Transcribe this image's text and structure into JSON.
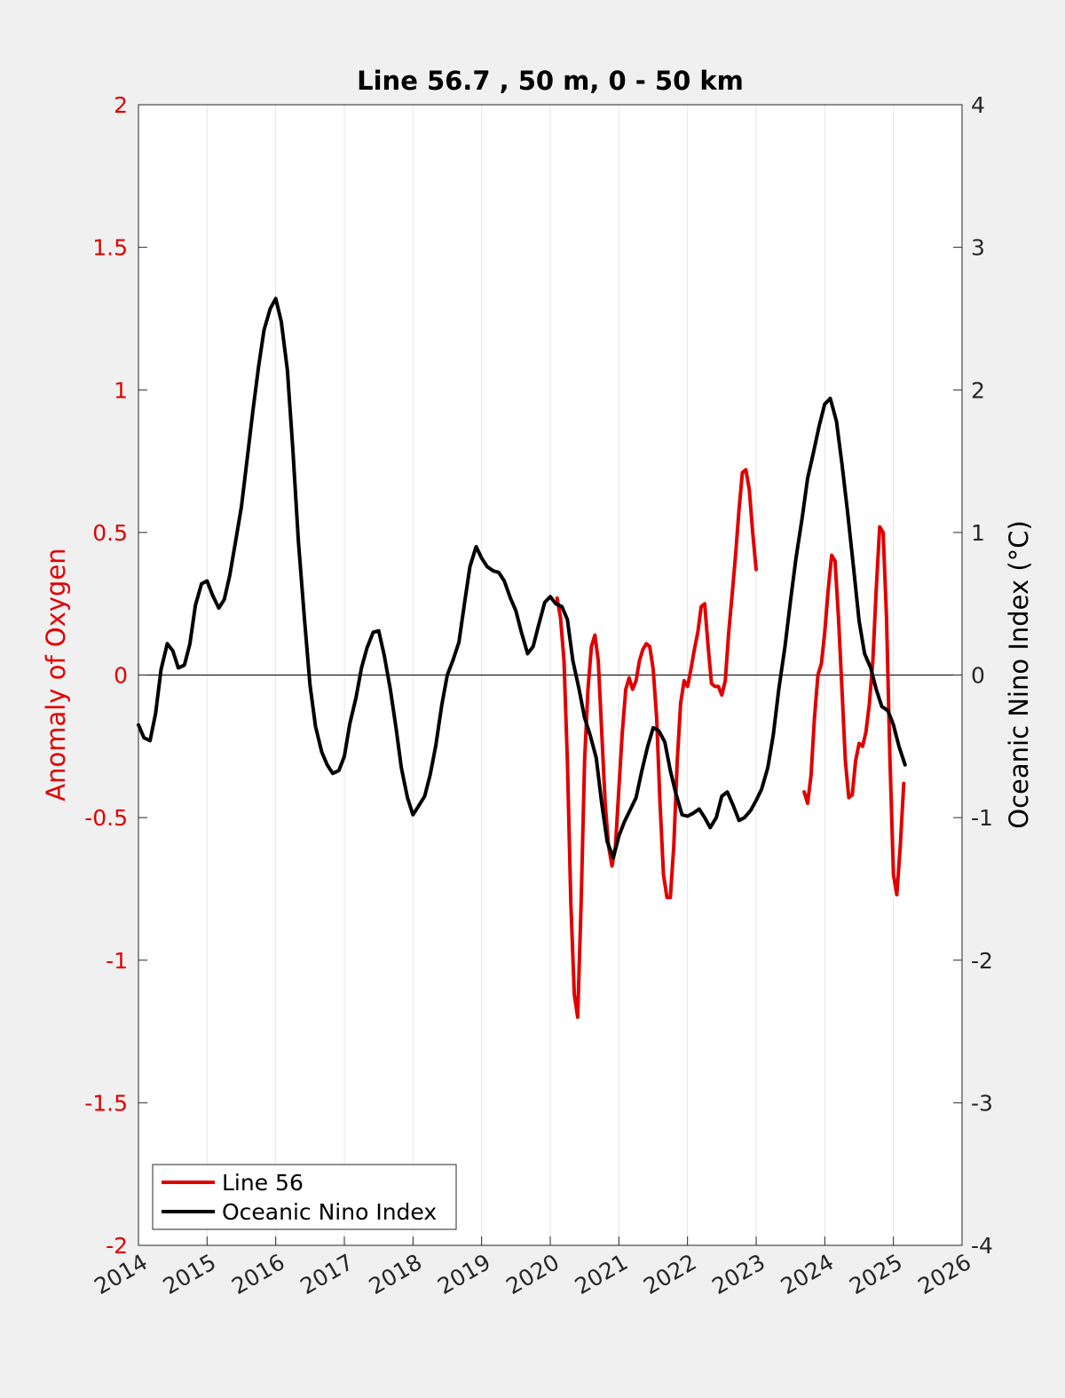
{
  "chart_data": {
    "type": "line",
    "title": "Line 56.7 , 50 m, 0 - 50 km",
    "xlim": [
      2014,
      2026
    ],
    "x_ticks": [
      "2014",
      "2015",
      "2016",
      "2017",
      "2018",
      "2019",
      "2020",
      "2021",
      "2022",
      "2023",
      "2024",
      "2025",
      "2026"
    ],
    "y_left": {
      "label": "Anomaly of Oxygen",
      "lim": [
        -2,
        2
      ],
      "ticks": [
        "-2",
        "-1.5",
        "-1",
        "-0.5",
        "0",
        "0.5",
        "1",
        "1.5",
        "2"
      ],
      "color": "#e00000"
    },
    "y_right": {
      "label": "Oceanic Nino Index (°C)",
      "lim": [
        -4,
        4
      ],
      "ticks": [
        "-4",
        "-3",
        "-2",
        "-1",
        "0",
        "1",
        "2",
        "3",
        "4"
      ],
      "color": "#000000"
    },
    "grid": "vertical",
    "zero_line": true,
    "legend_position": "bottom-left",
    "series": [
      {
        "name": "Line 56",
        "axis": "left",
        "color": "#e00000",
        "segments": [
          [
            [
              2020.1,
              0.27
            ],
            [
              2020.15,
              0.2
            ],
            [
              2020.2,
              0.05
            ],
            [
              2020.25,
              -0.3
            ],
            [
              2020.3,
              -0.8
            ],
            [
              2020.35,
              -1.12
            ],
            [
              2020.4,
              -1.2
            ],
            [
              2020.45,
              -0.8
            ],
            [
              2020.5,
              -0.3
            ],
            [
              2020.55,
              -0.05
            ],
            [
              2020.6,
              0.1
            ],
            [
              2020.65,
              0.14
            ],
            [
              2020.7,
              0.05
            ],
            [
              2020.75,
              -0.2
            ],
            [
              2020.8,
              -0.45
            ],
            [
              2020.85,
              -0.6
            ],
            [
              2020.9,
              -0.67
            ],
            [
              2020.95,
              -0.6
            ],
            [
              2021.0,
              -0.4
            ],
            [
              2021.05,
              -0.2
            ],
            [
              2021.1,
              -0.05
            ],
            [
              2021.15,
              -0.01
            ],
            [
              2021.2,
              -0.05
            ],
            [
              2021.25,
              -0.02
            ],
            [
              2021.3,
              0.05
            ],
            [
              2021.35,
              0.09
            ],
            [
              2021.4,
              0.11
            ],
            [
              2021.45,
              0.1
            ],
            [
              2021.5,
              0.02
            ],
            [
              2021.55,
              -0.15
            ],
            [
              2021.6,
              -0.45
            ],
            [
              2021.65,
              -0.7
            ],
            [
              2021.7,
              -0.78
            ],
            [
              2021.75,
              -0.78
            ],
            [
              2021.8,
              -0.6
            ],
            [
              2021.85,
              -0.3
            ],
            [
              2021.9,
              -0.1
            ],
            [
              2021.95,
              -0.02
            ],
            [
              2022.0,
              -0.04
            ],
            [
              2022.05,
              0.02
            ],
            [
              2022.1,
              0.09
            ],
            [
              2022.15,
              0.15
            ],
            [
              2022.2,
              0.24
            ],
            [
              2022.25,
              0.25
            ],
            [
              2022.3,
              0.1
            ],
            [
              2022.35,
              -0.03
            ],
            [
              2022.4,
              -0.04
            ],
            [
              2022.45,
              -0.04
            ],
            [
              2022.5,
              -0.07
            ],
            [
              2022.55,
              -0.02
            ],
            [
              2022.6,
              0.15
            ],
            [
              2022.65,
              0.28
            ],
            [
              2022.7,
              0.42
            ],
            [
              2022.75,
              0.58
            ],
            [
              2022.8,
              0.71
            ],
            [
              2022.85,
              0.72
            ],
            [
              2022.9,
              0.65
            ],
            [
              2022.95,
              0.5
            ],
            [
              2023.0,
              0.37
            ]
          ],
          [
            [
              2023.7,
              -0.41
            ],
            [
              2023.75,
              -0.45
            ],
            [
              2023.8,
              -0.35
            ],
            [
              2023.85,
              -0.15
            ],
            [
              2023.9,
              0.0
            ],
            [
              2023.95,
              0.04
            ],
            [
              2024.0,
              0.15
            ],
            [
              2024.05,
              0.3
            ],
            [
              2024.1,
              0.42
            ],
            [
              2024.15,
              0.4
            ],
            [
              2024.2,
              0.2
            ],
            [
              2024.25,
              -0.05
            ],
            [
              2024.3,
              -0.3
            ],
            [
              2024.35,
              -0.43
            ],
            [
              2024.4,
              -0.42
            ],
            [
              2024.45,
              -0.3
            ],
            [
              2024.5,
              -0.24
            ],
            [
              2024.55,
              -0.25
            ],
            [
              2024.6,
              -0.2
            ],
            [
              2024.65,
              -0.1
            ],
            [
              2024.7,
              0.05
            ],
            [
              2024.75,
              0.3
            ],
            [
              2024.8,
              0.52
            ],
            [
              2024.85,
              0.5
            ],
            [
              2024.9,
              0.2
            ],
            [
              2024.95,
              -0.3
            ],
            [
              2025.0,
              -0.7
            ],
            [
              2025.05,
              -0.77
            ],
            [
              2025.1,
              -0.6
            ],
            [
              2025.15,
              -0.38
            ]
          ]
        ]
      },
      {
        "name": "Oceanic Nino Index",
        "axis": "right",
        "color": "#000000",
        "segments": [
          [
            [
              2014.0,
              -0.35
            ],
            [
              2014.08,
              -0.44
            ],
            [
              2014.17,
              -0.46
            ],
            [
              2014.25,
              -0.27
            ],
            [
              2014.33,
              0.04
            ],
            [
              2014.42,
              0.22
            ],
            [
              2014.5,
              0.17
            ],
            [
              2014.58,
              0.05
            ],
            [
              2014.67,
              0.07
            ],
            [
              2014.75,
              0.22
            ],
            [
              2014.83,
              0.49
            ],
            [
              2014.92,
              0.64
            ],
            [
              2015.0,
              0.66
            ],
            [
              2015.08,
              0.56
            ],
            [
              2015.17,
              0.47
            ],
            [
              2015.25,
              0.53
            ],
            [
              2015.33,
              0.7
            ],
            [
              2015.42,
              0.95
            ],
            [
              2015.5,
              1.18
            ],
            [
              2015.58,
              1.5
            ],
            [
              2015.67,
              1.86
            ],
            [
              2015.75,
              2.16
            ],
            [
              2015.83,
              2.42
            ],
            [
              2015.92,
              2.57
            ],
            [
              2016.0,
              2.64
            ],
            [
              2016.08,
              2.48
            ],
            [
              2016.17,
              2.14
            ],
            [
              2016.25,
              1.58
            ],
            [
              2016.33,
              0.94
            ],
            [
              2016.42,
              0.39
            ],
            [
              2016.5,
              -0.07
            ],
            [
              2016.58,
              -0.36
            ],
            [
              2016.67,
              -0.54
            ],
            [
              2016.75,
              -0.63
            ],
            [
              2016.83,
              -0.69
            ],
            [
              2016.92,
              -0.67
            ],
            [
              2017.0,
              -0.57
            ],
            [
              2017.08,
              -0.34
            ],
            [
              2017.17,
              -0.16
            ],
            [
              2017.25,
              0.05
            ],
            [
              2017.33,
              0.19
            ],
            [
              2017.42,
              0.3
            ],
            [
              2017.5,
              0.31
            ],
            [
              2017.58,
              0.14
            ],
            [
              2017.67,
              -0.1
            ],
            [
              2017.75,
              -0.36
            ],
            [
              2017.83,
              -0.65
            ],
            [
              2017.92,
              -0.86
            ],
            [
              2018.0,
              -0.98
            ],
            [
              2018.08,
              -0.92
            ],
            [
              2018.17,
              -0.85
            ],
            [
              2018.25,
              -0.7
            ],
            [
              2018.33,
              -0.5
            ],
            [
              2018.42,
              -0.21
            ],
            [
              2018.5,
              0.0
            ],
            [
              2018.58,
              0.1
            ],
            [
              2018.67,
              0.23
            ],
            [
              2018.75,
              0.5
            ],
            [
              2018.83,
              0.76
            ],
            [
              2018.92,
              0.9
            ],
            [
              2019.0,
              0.82
            ],
            [
              2019.08,
              0.76
            ],
            [
              2019.17,
              0.73
            ],
            [
              2019.25,
              0.72
            ],
            [
              2019.33,
              0.66
            ],
            [
              2019.42,
              0.54
            ],
            [
              2019.5,
              0.45
            ],
            [
              2019.58,
              0.3
            ],
            [
              2019.67,
              0.15
            ],
            [
              2019.75,
              0.2
            ],
            [
              2019.83,
              0.35
            ],
            [
              2019.92,
              0.51
            ],
            [
              2020.0,
              0.55
            ],
            [
              2020.08,
              0.5
            ],
            [
              2020.17,
              0.48
            ],
            [
              2020.25,
              0.39
            ],
            [
              2020.33,
              0.1
            ],
            [
              2020.42,
              -0.1
            ],
            [
              2020.5,
              -0.3
            ],
            [
              2020.58,
              -0.42
            ],
            [
              2020.67,
              -0.58
            ],
            [
              2020.75,
              -0.9
            ],
            [
              2020.83,
              -1.17
            ],
            [
              2020.92,
              -1.28
            ],
            [
              2021.0,
              -1.13
            ],
            [
              2021.08,
              -1.03
            ],
            [
              2021.17,
              -0.94
            ],
            [
              2021.25,
              -0.86
            ],
            [
              2021.33,
              -0.68
            ],
            [
              2021.42,
              -0.5
            ],
            [
              2021.5,
              -0.37
            ],
            [
              2021.58,
              -0.39
            ],
            [
              2021.67,
              -0.47
            ],
            [
              2021.75,
              -0.67
            ],
            [
              2021.83,
              -0.83
            ],
            [
              2021.92,
              -0.98
            ],
            [
              2022.0,
              -0.99
            ],
            [
              2022.08,
              -0.97
            ],
            [
              2022.17,
              -0.94
            ],
            [
              2022.25,
              -1.0
            ],
            [
              2022.33,
              -1.07
            ],
            [
              2022.42,
              -1.0
            ],
            [
              2022.5,
              -0.85
            ],
            [
              2022.58,
              -0.82
            ],
            [
              2022.67,
              -0.92
            ],
            [
              2022.75,
              -1.02
            ],
            [
              2022.83,
              -1.0
            ],
            [
              2022.92,
              -0.95
            ],
            [
              2023.0,
              -0.88
            ],
            [
              2023.08,
              -0.8
            ],
            [
              2023.17,
              -0.65
            ],
            [
              2023.25,
              -0.42
            ],
            [
              2023.33,
              -0.1
            ],
            [
              2023.42,
              0.2
            ],
            [
              2023.5,
              0.52
            ],
            [
              2023.58,
              0.82
            ],
            [
              2023.67,
              1.1
            ],
            [
              2023.75,
              1.38
            ],
            [
              2023.83,
              1.55
            ],
            [
              2023.92,
              1.75
            ],
            [
              2024.0,
              1.9
            ],
            [
              2024.08,
              1.94
            ],
            [
              2024.17,
              1.78
            ],
            [
              2024.25,
              1.48
            ],
            [
              2024.33,
              1.15
            ],
            [
              2024.42,
              0.75
            ],
            [
              2024.5,
              0.38
            ],
            [
              2024.58,
              0.15
            ],
            [
              2024.67,
              0.05
            ],
            [
              2024.75,
              -0.1
            ],
            [
              2024.83,
              -0.22
            ],
            [
              2024.92,
              -0.25
            ],
            [
              2025.0,
              -0.35
            ],
            [
              2025.08,
              -0.5
            ],
            [
              2025.17,
              -0.63
            ]
          ]
        ]
      }
    ]
  }
}
